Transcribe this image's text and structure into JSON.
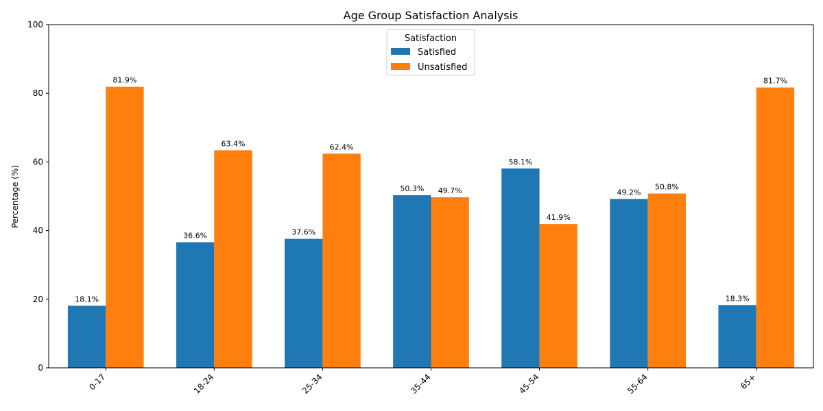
{
  "chart_data": {
    "type": "bar",
    "title": "Age Group Satisfaction Analysis",
    "xlabel": "",
    "ylabel": "Percentage (%)",
    "ylim": [
      0,
      100
    ],
    "yticks": [
      0,
      20,
      40,
      60,
      80,
      100
    ],
    "categories": [
      "0-17",
      "18-24",
      "25-34",
      "35-44",
      "45-54",
      "55-64",
      "65+"
    ],
    "series": [
      {
        "name": "Satisfied",
        "color": "#1f77b4",
        "values": [
          18.1,
          36.6,
          37.6,
          50.3,
          58.1,
          49.2,
          18.3
        ],
        "labels": [
          "18.1%",
          "36.6%",
          "37.6%",
          "50.3%",
          "58.1%",
          "49.2%",
          "18.3%"
        ]
      },
      {
        "name": "Unsatisfied",
        "color": "#ff7f0e",
        "values": [
          81.9,
          63.4,
          62.4,
          49.7,
          41.9,
          50.8,
          81.7
        ],
        "labels": [
          "81.9%",
          "63.4%",
          "62.4%",
          "49.7%",
          "41.9%",
          "50.8%",
          "81.7%"
        ]
      }
    ],
    "legend": {
      "title": "Satisfaction",
      "placement": "upper center"
    },
    "grid": false
  }
}
